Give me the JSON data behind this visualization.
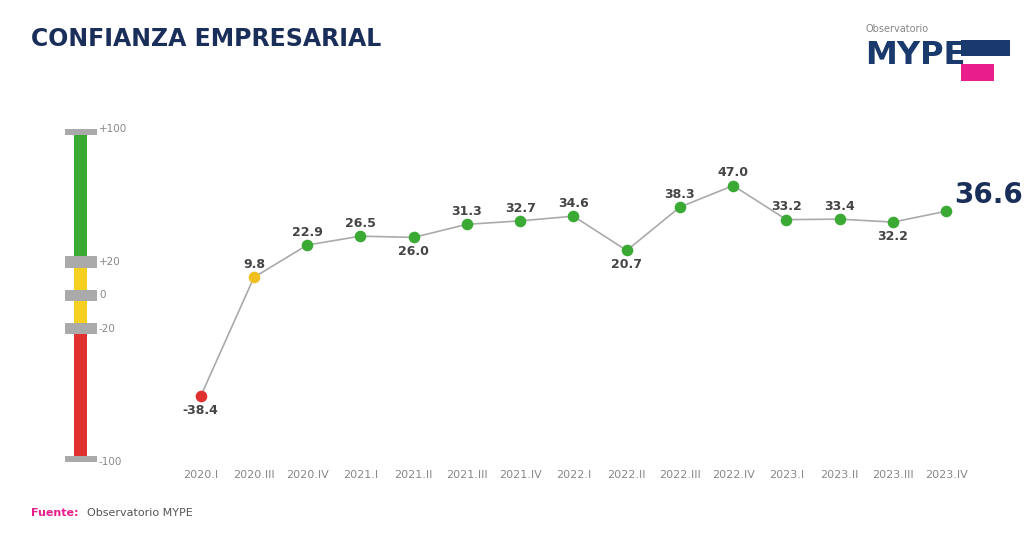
{
  "title": "CONFIANZA EMPRESARIAL",
  "categories": [
    "2020.I",
    "2020.III",
    "2020.IV",
    "2021.I",
    "2021.II",
    "2021.III",
    "2021.IV",
    "2022.I",
    "2022.II",
    "2022.III",
    "2022.IV",
    "2023.I",
    "2023.II",
    "2023.III",
    "2023.IV"
  ],
  "values": [
    -38.4,
    9.8,
    22.9,
    26.5,
    26.0,
    31.3,
    32.7,
    34.6,
    20.7,
    38.3,
    47.0,
    33.2,
    33.4,
    32.2,
    36.6
  ],
  "dot_colors": [
    "#e03030",
    "#f0c020",
    "#3aaa35",
    "#3aaa35",
    "#3aaa35",
    "#3aaa35",
    "#3aaa35",
    "#3aaa35",
    "#3aaa35",
    "#3aaa35",
    "#3aaa35",
    "#3aaa35",
    "#3aaa35",
    "#3aaa35",
    "#3aaa35"
  ],
  "line_color": "#aaaaaa",
  "title_color": "#1a2e5a",
  "source_label": "Fuente:",
  "source_detail": "Observatorio MYPE",
  "source_color_label": "#e91e8c",
  "source_color_text": "#555555",
  "last_value_color": "#1a2e5a",
  "background_color": "#ffffff",
  "thermo_green": "#3aaa35",
  "thermo_yellow": "#f5d020",
  "thermo_red": "#e03030",
  "thermo_gray": "#aaaaaa",
  "logo_navy": "#1a3a6e",
  "logo_pink": "#e91e8c",
  "logo_obs_color": "#888888",
  "dot_size": 70,
  "label_fontsize": 9.0,
  "axis_label_fontsize": 8.0,
  "ylim_min": -65,
  "ylim_max": 70
}
